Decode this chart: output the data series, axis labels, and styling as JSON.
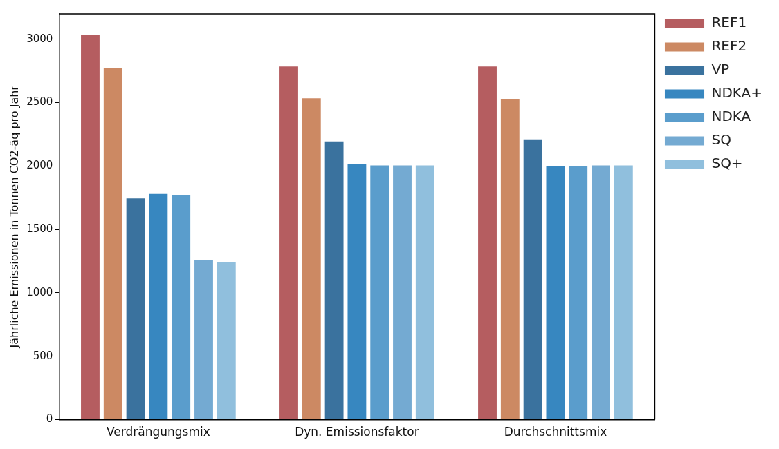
{
  "chart_data": {
    "type": "bar",
    "ylabel": "Jährliche Emissionen in Tonnen CO2-äq pro Jahr",
    "categories": [
      "Verdrängungsmix",
      "Dyn. Emissionsfaktor",
      "Durchschnittsmix"
    ],
    "series": [
      {
        "name": "REF1",
        "color": "#b55d60",
        "values": [
          3040,
          2790,
          2790
        ]
      },
      {
        "name": "REF2",
        "color": "#cc8963",
        "values": [
          2780,
          2540,
          2530
        ]
      },
      {
        "name": "VP",
        "color": "#3a729e",
        "values": [
          1750,
          2200,
          2215
        ]
      },
      {
        "name": "NDKA+",
        "color": "#3787c0",
        "values": [
          1785,
          2020,
          2005
        ]
      },
      {
        "name": "NDKA",
        "color": "#5a9dcc",
        "values": [
          1775,
          2010,
          2005
        ]
      },
      {
        "name": "SQ",
        "color": "#74aad2",
        "values": [
          1265,
          2010,
          2010
        ]
      },
      {
        "name": "SQ+",
        "color": "#90bfdd",
        "values": [
          1250,
          2010,
          2010
        ]
      }
    ],
    "ylim": [
      0,
      3200
    ],
    "yticks": [
      0,
      500,
      1000,
      1500,
      2000,
      2500,
      3000
    ],
    "grid": false,
    "legend": "top right"
  }
}
